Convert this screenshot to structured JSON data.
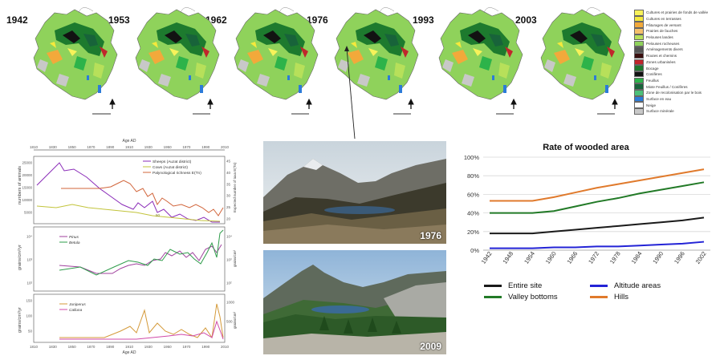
{
  "years": [
    "1942",
    "1953",
    "1962",
    "1976",
    "1993",
    "2003"
  ],
  "map_legend": [
    {
      "label": "Cultures et prairies de fonds de vallée",
      "color": "#f7f25a"
    },
    {
      "label": "Cultures en terrasses",
      "color": "#f4e93c"
    },
    {
      "label": "Pâturages de versant",
      "color": "#f2a93b"
    },
    {
      "label": "Prairies de fauches",
      "color": "#f5c06a"
    },
    {
      "label": "Pelouses landes",
      "color": "#b7e05a"
    },
    {
      "label": "Pelouses rocheuses",
      "color": "#8fd25b"
    },
    {
      "label": "Aménagements divers",
      "color": "#555555"
    },
    {
      "label": "Routes et chemins",
      "color": "#3a0f0f"
    },
    {
      "label": "Zones urbanisées",
      "color": "#c0262c"
    },
    {
      "label": "Bocage",
      "color": "#1d7a2e"
    },
    {
      "label": "Conifères",
      "color": "#121212"
    },
    {
      "label": "Feuillus",
      "color": "#2db34a"
    },
    {
      "label": "Mixte Feuillus / Conifères",
      "color": "#18633a"
    },
    {
      "label": "Zone de recolonisation par le bois",
      "color": "#4cc07a"
    },
    {
      "label": "Surface en eau",
      "color": "#2c7bd8"
    },
    {
      "label": "Neige",
      "color": "#ffffff"
    },
    {
      "label": "Surface minérale",
      "color": "#c8c8c8"
    }
  ],
  "photos": [
    {
      "year": "1976"
    },
    {
      "year": "2009"
    }
  ],
  "pollen_panel": {
    "top_axis_ticks": [
      "1810",
      "1830",
      "1850",
      "1870",
      "1890",
      "1910",
      "1930",
      "1950",
      "1970",
      "1990",
      "2010"
    ],
    "top_axis_title": "Age AD",
    "bottom_axis_title": "Age AD",
    "panel1": {
      "ylabel": "numbers of animals",
      "ylabel_right": "Expected number of taxa E(Tn)",
      "legend": [
        "Sheeps (Auzat district)",
        "Cows (Auzat district)",
        "Palynological richness E(Tn)"
      ],
      "y_ticks": [
        "25000",
        "20000",
        "15000",
        "10000",
        "5000"
      ],
      "y_ticks_right": [
        "45",
        "40",
        "35",
        "30",
        "25",
        "20"
      ],
      "annotation": "50"
    },
    "panel2": {
      "ylabel": "grains/cm²/yr",
      "ylabel_right": "grains/cm²",
      "legend": [
        "Pinus",
        "Betula"
      ],
      "y_ticks": [
        "10⁴",
        "10³",
        "10²"
      ],
      "y_ticks_right": [
        "10⁴",
        "10³",
        "10²"
      ]
    },
    "panel3": {
      "ylabel": "grains/cm²/yr",
      "ylabel_right": "grains/cm²",
      "legend": [
        "Juniperus",
        "Calluna"
      ],
      "y_ticks": [
        "150",
        "100",
        "50"
      ],
      "y_ticks_right": [
        "1000",
        "500"
      ]
    }
  },
  "chart_data": {
    "type": "line",
    "title": "Rate of wooded area",
    "x": [
      "1942",
      "1948",
      "1954",
      "1960",
      "1966",
      "1972",
      "1978",
      "1984",
      "1990",
      "1996",
      "2002"
    ],
    "ylim": [
      0,
      100
    ],
    "y_ticks": [
      "0%",
      "20%",
      "40%",
      "60%",
      "80%",
      "100%"
    ],
    "grid": true,
    "legend_position": "bottom",
    "series": [
      {
        "name": "Entire site",
        "color": "#1a1a1a",
        "values": [
          18,
          18,
          18,
          20,
          22,
          24,
          26,
          28,
          30,
          32,
          35
        ]
      },
      {
        "name": "Altitude areas",
        "color": "#2323d6",
        "values": [
          2,
          2,
          2,
          3,
          3,
          4,
          4,
          5,
          6,
          7,
          9
        ]
      },
      {
        "name": "Valley bottoms",
        "color": "#227a27",
        "values": [
          40,
          40,
          40,
          42,
          47,
          52,
          56,
          61,
          65,
          69,
          73
        ]
      },
      {
        "name": "Hills",
        "color": "#e07a2c",
        "values": [
          53,
          53,
          53,
          57,
          62,
          67,
          71,
          75,
          79,
          83,
          87
        ]
      }
    ]
  }
}
